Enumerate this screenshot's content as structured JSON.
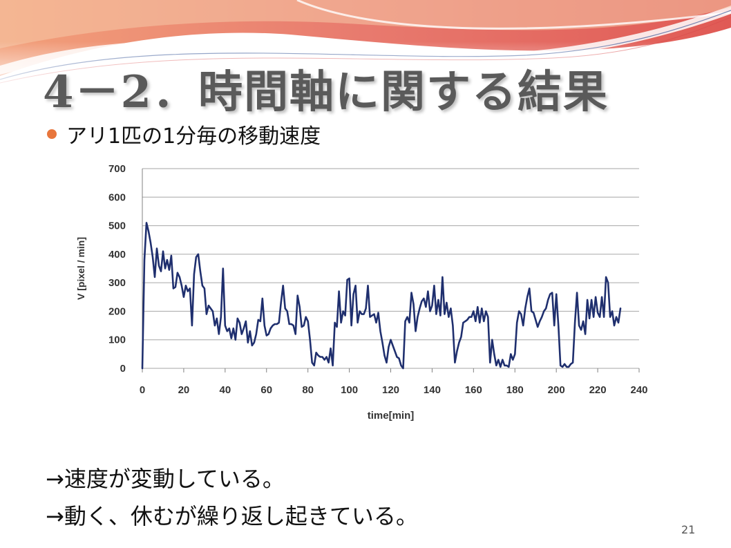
{
  "title": "4－2．時間軸に関する結果",
  "bullet": "アリ1匹の1分毎の移動速度",
  "notes": [
    "→速度が変動している。",
    "→動く、休むが繰り返し起きている。"
  ],
  "page_number": "21",
  "colors": {
    "line": "#1f2f6e",
    "grid": "#a6a6a6",
    "bullet": "#e8763c",
    "title": "#5a5a5a"
  },
  "chart_data": {
    "type": "line",
    "xlabel": "time[min]",
    "ylabel": "V [pixel / min]",
    "xlim": [
      0,
      240
    ],
    "ylim": [
      0,
      700
    ],
    "xticks": [
      0,
      20,
      40,
      60,
      80,
      100,
      120,
      140,
      160,
      180,
      200,
      220,
      240
    ],
    "yticks": [
      0,
      100,
      200,
      300,
      400,
      500,
      600,
      700
    ],
    "grid": "horizontal",
    "series": [
      {
        "values": [
          [
            0,
            0
          ],
          [
            1,
            380
          ],
          [
            2,
            510
          ],
          [
            3,
            480
          ],
          [
            4,
            440
          ],
          [
            5,
            390
          ],
          [
            6,
            320
          ],
          [
            7,
            420
          ],
          [
            8,
            360
          ],
          [
            9,
            340
          ],
          [
            10,
            410
          ],
          [
            11,
            350
          ],
          [
            12,
            380
          ],
          [
            13,
            345
          ],
          [
            14,
            395
          ],
          [
            15,
            280
          ],
          [
            16,
            285
          ],
          [
            17,
            335
          ],
          [
            18,
            320
          ],
          [
            19,
            290
          ],
          [
            20,
            250
          ],
          [
            21,
            290
          ],
          [
            22,
            270
          ],
          [
            23,
            280
          ],
          [
            24,
            150
          ],
          [
            25,
            330
          ],
          [
            26,
            390
          ],
          [
            27,
            400
          ],
          [
            28,
            340
          ],
          [
            29,
            290
          ],
          [
            30,
            280
          ],
          [
            31,
            190
          ],
          [
            32,
            220
          ],
          [
            33,
            210
          ],
          [
            34,
            200
          ],
          [
            35,
            150
          ],
          [
            36,
            175
          ],
          [
            37,
            120
          ],
          [
            38,
            180
          ],
          [
            39,
            350
          ],
          [
            40,
            150
          ],
          [
            41,
            130
          ],
          [
            42,
            140
          ],
          [
            43,
            105
          ],
          [
            44,
            140
          ],
          [
            45,
            100
          ],
          [
            46,
            175
          ],
          [
            47,
            160
          ],
          [
            48,
            120
          ],
          [
            49,
            140
          ],
          [
            50,
            165
          ],
          [
            51,
            90
          ],
          [
            52,
            130
          ],
          [
            53,
            80
          ],
          [
            54,
            90
          ],
          [
            55,
            120
          ],
          [
            56,
            170
          ],
          [
            57,
            165
          ],
          [
            58,
            245
          ],
          [
            59,
            150
          ],
          [
            60,
            115
          ],
          [
            61,
            120
          ],
          [
            62,
            140
          ],
          [
            63,
            150
          ],
          [
            64,
            155
          ],
          [
            65,
            155
          ],
          [
            66,
            160
          ],
          [
            67,
            230
          ],
          [
            68,
            290
          ],
          [
            69,
            210
          ],
          [
            70,
            200
          ],
          [
            71,
            155
          ],
          [
            72,
            155
          ],
          [
            73,
            150
          ],
          [
            74,
            120
          ],
          [
            75,
            255
          ],
          [
            76,
            215
          ],
          [
            77,
            145
          ],
          [
            78,
            150
          ],
          [
            79,
            180
          ],
          [
            80,
            165
          ],
          [
            81,
            100
          ],
          [
            82,
            20
          ],
          [
            83,
            10
          ],
          [
            84,
            55
          ],
          [
            85,
            45
          ],
          [
            86,
            40
          ],
          [
            87,
            40
          ],
          [
            88,
            30
          ],
          [
            89,
            40
          ],
          [
            90,
            20
          ],
          [
            91,
            70
          ],
          [
            92,
            10
          ],
          [
            93,
            160
          ],
          [
            94,
            145
          ],
          [
            95,
            270
          ],
          [
            96,
            160
          ],
          [
            97,
            200
          ],
          [
            98,
            185
          ],
          [
            99,
            310
          ],
          [
            100,
            315
          ],
          [
            101,
            150
          ],
          [
            102,
            260
          ],
          [
            103,
            290
          ],
          [
            104,
            160
          ],
          [
            105,
            200
          ],
          [
            106,
            190
          ],
          [
            107,
            190
          ],
          [
            108,
            210
          ],
          [
            109,
            290
          ],
          [
            110,
            180
          ],
          [
            111,
            185
          ],
          [
            112,
            190
          ],
          [
            113,
            160
          ],
          [
            114,
            195
          ],
          [
            115,
            130
          ],
          [
            116,
            90
          ],
          [
            117,
            45
          ],
          [
            118,
            20
          ],
          [
            119,
            75
          ],
          [
            120,
            100
          ],
          [
            121,
            80
          ],
          [
            122,
            60
          ],
          [
            123,
            40
          ],
          [
            124,
            35
          ],
          [
            125,
            10
          ],
          [
            126,
            0
          ],
          [
            127,
            165
          ],
          [
            128,
            180
          ],
          [
            129,
            160
          ],
          [
            130,
            265
          ],
          [
            131,
            225
          ],
          [
            132,
            130
          ],
          [
            133,
            180
          ],
          [
            134,
            210
          ],
          [
            135,
            235
          ],
          [
            136,
            245
          ],
          [
            137,
            215
          ],
          [
            138,
            270
          ],
          [
            139,
            200
          ],
          [
            140,
            220
          ],
          [
            141,
            290
          ],
          [
            142,
            190
          ],
          [
            143,
            240
          ],
          [
            144,
            185
          ],
          [
            145,
            320
          ],
          [
            146,
            190
          ],
          [
            147,
            230
          ],
          [
            148,
            180
          ],
          [
            149,
            210
          ],
          [
            150,
            150
          ],
          [
            151,
            20
          ],
          [
            152,
            60
          ],
          [
            153,
            90
          ],
          [
            154,
            110
          ],
          [
            155,
            160
          ],
          [
            156,
            165
          ],
          [
            157,
            170
          ],
          [
            158,
            180
          ],
          [
            159,
            180
          ],
          [
            160,
            200
          ],
          [
            161,
            165
          ],
          [
            162,
            215
          ],
          [
            163,
            160
          ],
          [
            164,
            210
          ],
          [
            165,
            165
          ],
          [
            166,
            200
          ],
          [
            167,
            180
          ],
          [
            168,
            20
          ],
          [
            169,
            100
          ],
          [
            170,
            50
          ],
          [
            171,
            10
          ],
          [
            172,
            30
          ],
          [
            173,
            5
          ],
          [
            174,
            30
          ],
          [
            175,
            10
          ],
          [
            176,
            10
          ],
          [
            177,
            5
          ],
          [
            178,
            50
          ],
          [
            179,
            30
          ],
          [
            180,
            50
          ],
          [
            181,
            160
          ],
          [
            182,
            200
          ],
          [
            183,
            190
          ],
          [
            184,
            150
          ],
          [
            185,
            210
          ],
          [
            186,
            250
          ],
          [
            187,
            280
          ],
          [
            188,
            200
          ],
          [
            189,
            195
          ],
          [
            190,
            170
          ],
          [
            191,
            145
          ],
          [
            192,
            165
          ],
          [
            193,
            180
          ],
          [
            194,
            200
          ],
          [
            195,
            210
          ],
          [
            196,
            240
          ],
          [
            197,
            260
          ],
          [
            198,
            265
          ],
          [
            199,
            150
          ],
          [
            200,
            260
          ],
          [
            201,
            150
          ],
          [
            202,
            10
          ],
          [
            203,
            5
          ],
          [
            204,
            15
          ],
          [
            205,
            5
          ],
          [
            206,
            5
          ],
          [
            207,
            15
          ],
          [
            208,
            20
          ],
          [
            209,
            160
          ],
          [
            210,
            265
          ],
          [
            211,
            150
          ],
          [
            212,
            135
          ],
          [
            213,
            165
          ],
          [
            214,
            120
          ],
          [
            215,
            240
          ],
          [
            216,
            175
          ],
          [
            217,
            240
          ],
          [
            218,
            180
          ],
          [
            219,
            250
          ],
          [
            220,
            195
          ],
          [
            221,
            180
          ],
          [
            222,
            250
          ],
          [
            223,
            180
          ],
          [
            224,
            320
          ],
          [
            225,
            300
          ],
          [
            226,
            180
          ],
          [
            227,
            200
          ],
          [
            228,
            150
          ],
          [
            229,
            180
          ],
          [
            230,
            160
          ],
          [
            231,
            210
          ]
        ]
      }
    ]
  }
}
